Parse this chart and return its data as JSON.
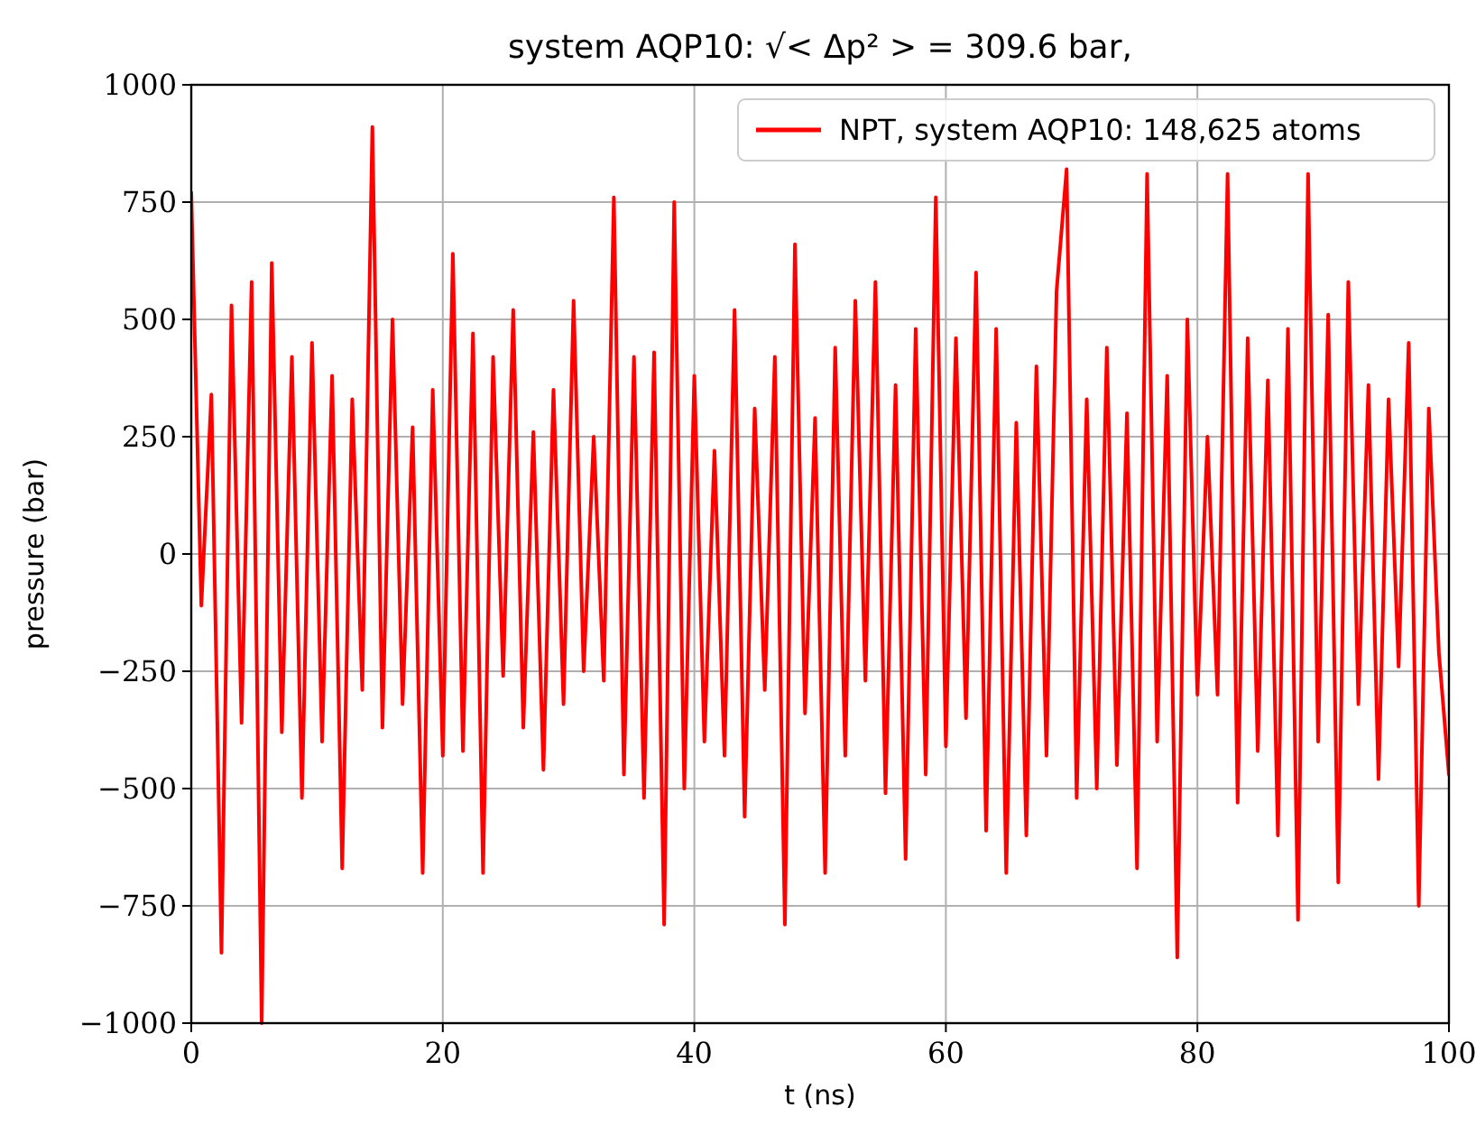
{
  "chart_data": {
    "type": "line",
    "title": "system AQP10: √< Δp² > = 309.6 bar,",
    "xlabel": "t (ns)",
    "ylabel": "pressure (bar)",
    "x": [
      0,
      0.8,
      1.6,
      2.4,
      3.2,
      4,
      4.8,
      5.6,
      6.4,
      7.2,
      8,
      8.8,
      9.6,
      10.4,
      11.2,
      12,
      12.8,
      13.6,
      14.4,
      15.2,
      16,
      16.8,
      17.6,
      18.4,
      19.2,
      20,
      20.8,
      21.6,
      22.4,
      23.2,
      24,
      24.8,
      25.6,
      26.4,
      27.2,
      28,
      28.8,
      29.6,
      30.4,
      31.2,
      32,
      32.8,
      33.6,
      34.4,
      35.2,
      36,
      36.8,
      37.6,
      38.4,
      39.2,
      40,
      40.8,
      41.6,
      42.4,
      43.2,
      44,
      44.8,
      45.6,
      46.4,
      47.2,
      48,
      48.8,
      49.6,
      50.4,
      51.2,
      52,
      52.8,
      53.6,
      54.4,
      55.2,
      56,
      56.8,
      57.6,
      58.4,
      59.2,
      60,
      60.8,
      61.6,
      62.4,
      63.2,
      64,
      64.8,
      65.6,
      66.4,
      67.2,
      68,
      68.8,
      69.6,
      70.4,
      71.2,
      72,
      72.8,
      73.6,
      74.4,
      75.2,
      76,
      76.8,
      77.6,
      78.4,
      79.2,
      80,
      80.8,
      81.6,
      82.4,
      83.2,
      84,
      84.8,
      85.6,
      86.4,
      87.2,
      88,
      88.8,
      89.6,
      90.4,
      91.2,
      92,
      92.8,
      93.6,
      94.4,
      95.2,
      96,
      96.8,
      97.6,
      98.4,
      99.2,
      100
    ],
    "series": [
      {
        "name": "NPT, system AQP10: 148,625 atoms",
        "color": "#ff0000",
        "values": [
          770,
          -110,
          340,
          -850,
          530,
          -360,
          580,
          -1000,
          620,
          -380,
          420,
          -520,
          450,
          -400,
          380,
          -670,
          330,
          -290,
          910,
          -370,
          500,
          -320,
          270,
          -680,
          350,
          -430,
          640,
          -420,
          470,
          -680,
          420,
          -260,
          520,
          -370,
          260,
          -460,
          350,
          -320,
          540,
          -250,
          250,
          -270,
          760,
          -470,
          420,
          -520,
          430,
          -790,
          750,
          -500,
          380,
          -400,
          220,
          -430,
          520,
          -560,
          310,
          -290,
          420,
          -790,
          660,
          -340,
          290,
          -680,
          440,
          -430,
          540,
          -270,
          580,
          -510,
          360,
          -650,
          480,
          -470,
          760,
          -410,
          460,
          -350,
          600,
          -590,
          480,
          -680,
          280,
          -600,
          400,
          -430,
          560,
          820,
          -520,
          330,
          -500,
          440,
          -450,
          300,
          -670,
          810,
          -400,
          380,
          -860,
          500,
          -300,
          250,
          -300,
          810,
          -530,
          460,
          -420,
          370,
          -600,
          480,
          -780,
          810,
          -400,
          510,
          -700,
          580,
          -320,
          360,
          -480,
          330,
          -240,
          450,
          -750,
          310,
          -210,
          -470
        ]
      }
    ],
    "xlim": [
      0,
      100
    ],
    "xticks": [
      0,
      20,
      40,
      60,
      80,
      100
    ],
    "ylim": [
      -1000,
      1000
    ],
    "yticks": [
      {
        "value": -1000,
        "label": "−1000"
      },
      {
        "value": -750,
        "label": "−750"
      },
      {
        "value": -500,
        "label": "−500"
      },
      {
        "value": -250,
        "label": "−250"
      },
      0,
      250,
      500,
      750,
      1000
    ],
    "grid": true,
    "legend": "top right",
    "line_style": "solid",
    "marker": "none"
  }
}
